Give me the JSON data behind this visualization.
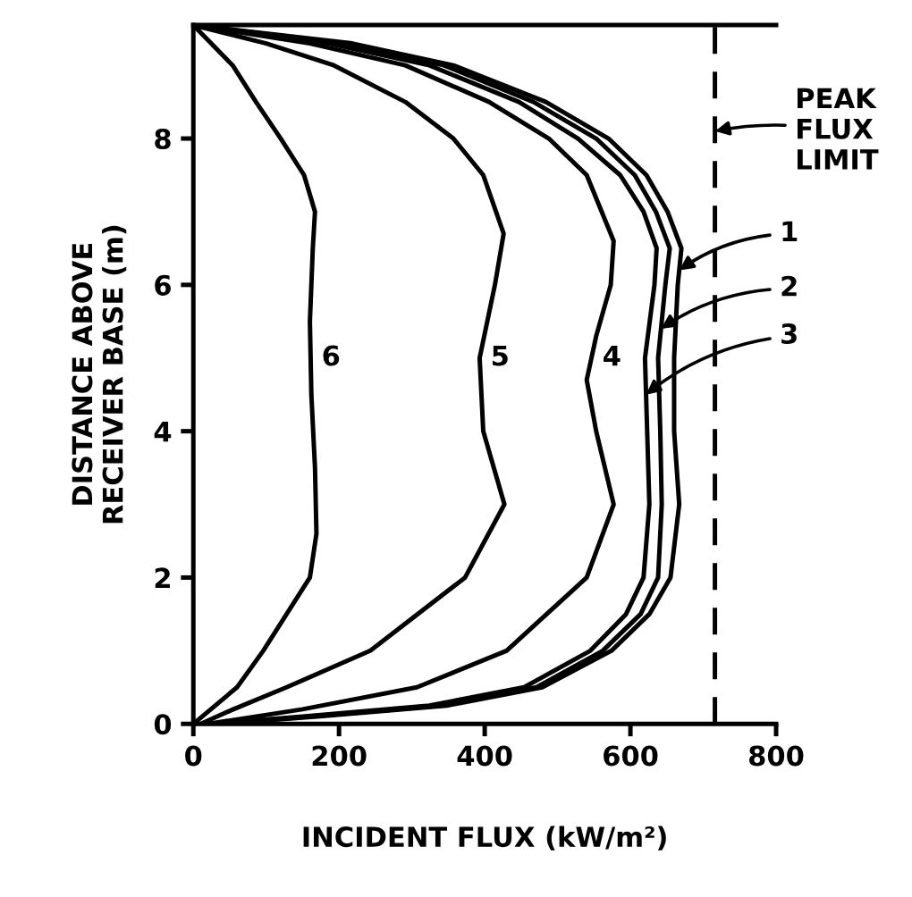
{
  "chart_data": {
    "type": "line",
    "xlabel": "INCIDENT FLUX (kW/m²)",
    "ylabel": "DISTANCE ABOVE\nRECEIVER BASE (m)",
    "xlim": [
      0,
      800
    ],
    "ylim": [
      0,
      9.55
    ],
    "xticks": [
      0,
      200,
      400,
      600,
      800
    ],
    "yticks": [
      0,
      2,
      4,
      6,
      8
    ],
    "grid": false,
    "legend": false,
    "marker": "none",
    "line_style": "solid",
    "series": [
      {
        "name": "1",
        "color": "#000000",
        "x": [
          35,
          170,
          348,
          479,
          574,
          626,
          655,
          667,
          660,
          660,
          665,
          670,
          651,
          622,
          570,
          484,
          357,
          218,
          0
        ],
        "values": [
          0,
          0.1,
          0.25,
          0.5,
          1,
          1.5,
          2,
          3,
          4,
          5,
          6,
          6.5,
          7,
          7.5,
          8,
          8.5,
          9,
          9.3,
          9.55
        ]
      },
      {
        "name": "2",
        "color": "#000000",
        "x": [
          30,
          160,
          341,
          471,
          562,
          614,
          638,
          643,
          641,
          638,
          648,
          654,
          635,
          606,
          553,
          467,
          344,
          205,
          0
        ],
        "values": [
          0,
          0.1,
          0.25,
          0.5,
          1,
          1.5,
          2,
          3,
          4,
          5,
          6,
          6.5,
          7,
          7.5,
          8,
          8.5,
          9,
          9.3,
          9.55
        ]
      },
      {
        "name": "3",
        "color": "#000000",
        "x": [
          25,
          150,
          324,
          454,
          545,
          594,
          618,
          626,
          623,
          620,
          633,
          636,
          618,
          586,
          528,
          447,
          324,
          185,
          0
        ],
        "values": [
          0,
          0.1,
          0.25,
          0.5,
          1,
          1.5,
          2,
          3,
          4,
          5,
          6,
          6.5,
          7,
          7.5,
          8,
          8.5,
          9,
          9.3,
          9.55
        ]
      },
      {
        "name": "4",
        "color": "#000000",
        "x": [
          20,
          150,
          307,
          430,
          540,
          577,
          553,
          540,
          553,
          573,
          577,
          540,
          488,
          406,
          291,
          160,
          0
        ],
        "values": [
          0,
          0.2,
          0.5,
          1,
          2,
          3,
          4,
          4.7,
          5.3,
          6,
          6.6,
          7.5,
          8,
          8.5,
          9,
          9.3,
          9.55
        ]
      },
      {
        "name": "5",
        "color": "#000000",
        "x": [
          10,
          55,
          128,
          243,
          373,
          427,
          398,
          393,
          414,
          426,
          398,
          357,
          291,
          193,
          100,
          0
        ],
        "values": [
          0,
          0.2,
          0.5,
          1,
          2,
          3,
          4,
          5,
          6,
          6.7,
          7.5,
          8,
          8.5,
          9,
          9.3,
          9.55
        ]
      },
      {
        "name": "6",
        "color": "#000000",
        "x": [
          0,
          60,
          96,
          160,
          169,
          167,
          162,
          160,
          164,
          167,
          152,
          120,
          86,
          54,
          0
        ],
        "values": [
          0,
          0.5,
          1,
          2,
          2.6,
          3.5,
          4.5,
          5.5,
          6.5,
          7,
          7.5,
          8,
          8.5,
          9,
          9.55
        ]
      }
    ],
    "ref_lines": [
      {
        "axis": "x",
        "value": 716,
        "label": "PEAK\nFLUX\nLIMIT",
        "color": "#000000",
        "line_style": "dashed"
      }
    ]
  }
}
